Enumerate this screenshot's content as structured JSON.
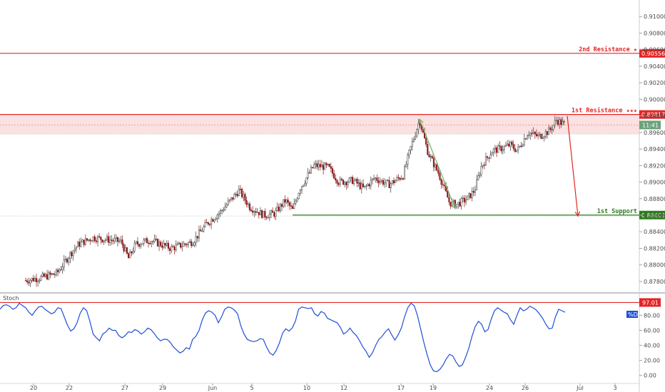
{
  "chart_data": [
    {
      "type": "candlestick",
      "y_ticks": [
        "0.87800",
        "0.88000",
        "0.88200",
        "0.88400",
        "0.88600",
        "0.88800",
        "0.89000",
        "0.89200",
        "0.89400",
        "0.89600",
        "0.89800",
        "0.90000",
        "0.90200",
        "0.90400",
        "0.90600",
        "0.90800",
        "0.91000"
      ],
      "ylim": [
        0.8767,
        0.912
      ],
      "x_ticks": [
        "20",
        "22",
        "27",
        "29",
        "Jun",
        "5",
        "10",
        "12",
        "17",
        "19",
        "24",
        "26",
        "Jul",
        "3"
      ],
      "levels": [
        {
          "label": "2nd Resistance ★",
          "value": 0.90556,
          "tag": "0.90556",
          "color": "#e32626"
        },
        {
          "label": "1st Resistance ★★★",
          "value": 0.89817,
          "tag": "0.89817",
          "color": "#e32626"
        },
        {
          "label": "1st Support",
          "value": 0.88602,
          "tag": "0.88602",
          "color": "#2e7d1e"
        }
      ],
      "zone": [
        0.8958,
        0.89817
      ],
      "time_tag": "11:41",
      "last_price": 0.8969,
      "close_path": [
        [
          0,
          0.8779
        ],
        [
          35,
          0.8781
        ],
        [
          60,
          0.8785
        ],
        [
          80,
          0.879
        ],
        [
          100,
          0.8815
        ],
        [
          110,
          0.8825
        ],
        [
          130,
          0.8833
        ],
        [
          155,
          0.883
        ],
        [
          170,
          0.8828
        ],
        [
          180,
          0.8808
        ],
        [
          190,
          0.8825
        ],
        [
          210,
          0.883
        ],
        [
          240,
          0.882
        ],
        [
          270,
          0.8828
        ],
        [
          290,
          0.885
        ],
        [
          310,
          0.8865
        ],
        [
          335,
          0.889
        ],
        [
          350,
          0.887
        ],
        [
          370,
          0.886
        ],
        [
          385,
          0.8862
        ],
        [
          400,
          0.8878
        ],
        [
          410,
          0.8866
        ],
        [
          420,
          0.8892
        ],
        [
          440,
          0.892
        ],
        [
          460,
          0.8918
        ],
        [
          475,
          0.89
        ],
        [
          495,
          0.8902
        ],
        [
          510,
          0.8892
        ],
        [
          525,
          0.8905
        ],
        [
          545,
          0.8897
        ],
        [
          565,
          0.8908
        ],
        [
          575,
          0.894
        ],
        [
          588,
          0.8975
        ],
        [
          600,
          0.8935
        ],
        [
          615,
          0.891
        ],
        [
          630,
          0.8875
        ],
        [
          640,
          0.8873
        ],
        [
          655,
          0.888
        ],
        [
          665,
          0.889
        ],
        [
          675,
          0.892
        ],
        [
          690,
          0.8938
        ],
        [
          700,
          0.894
        ],
        [
          715,
          0.8945
        ],
        [
          725,
          0.8938
        ],
        [
          740,
          0.896
        ],
        [
          755,
          0.8955
        ],
        [
          770,
          0.8962
        ],
        [
          780,
          0.8975
        ],
        [
          790,
          0.897
        ]
      ],
      "arrows": [
        {
          "from": [
            588,
            0.8976
          ],
          "to": [
            638,
            0.8868
          ],
          "color": "#6fb56a"
        },
        {
          "from": [
            795,
            0.898
          ],
          "to": [
            810,
            0.8859
          ],
          "color": "#e32626"
        }
      ]
    },
    {
      "type": "line",
      "name": "%D",
      "indicator": "Stoch",
      "y_ticks": [
        "0.00",
        "20.00",
        "40.00",
        "60.00",
        "80.00"
      ],
      "ylim": [
        -5,
        105
      ],
      "level": {
        "value": 97.01,
        "tag": "97.01"
      },
      "values": [
        88,
        93,
        94,
        92,
        88,
        90,
        96,
        93,
        90,
        84,
        80,
        86,
        91,
        92,
        88,
        85,
        82,
        84,
        90,
        89,
        78,
        67,
        59,
        62,
        70,
        83,
        90,
        86,
        72,
        55,
        50,
        46,
        55,
        58,
        63,
        60,
        60,
        53,
        50,
        53,
        58,
        57,
        61,
        59,
        55,
        58,
        63,
        61,
        56,
        50,
        46,
        48,
        48,
        44,
        38,
        34,
        30,
        32,
        37,
        35,
        48,
        52,
        60,
        74,
        83,
        86,
        84,
        80,
        70,
        78,
        88,
        91,
        90,
        87,
        82,
        66,
        55,
        48,
        46,
        45,
        46,
        49,
        48,
        38,
        30,
        27,
        33,
        43,
        56,
        62,
        59,
        63,
        72,
        88,
        91,
        90,
        89,
        90,
        82,
        79,
        85,
        83,
        76,
        74,
        72,
        70,
        64,
        55,
        58,
        63,
        57,
        53,
        46,
        38,
        32,
        24,
        30,
        40,
        48,
        52,
        58,
        62,
        54,
        47,
        54,
        63,
        78,
        90,
        96,
        93,
        80,
        62,
        44,
        28,
        14,
        6,
        5,
        8,
        14,
        22,
        28,
        26,
        18,
        12,
        14,
        24,
        36,
        52,
        65,
        72,
        68,
        58,
        61,
        75,
        86,
        90,
        87,
        84,
        82,
        74,
        68,
        80,
        90,
        86,
        88,
        92,
        90,
        87,
        82,
        76,
        68,
        62,
        63,
        78,
        88,
        86,
        84
      ]
    }
  ],
  "ui": {
    "indicator_badge": "%D"
  }
}
